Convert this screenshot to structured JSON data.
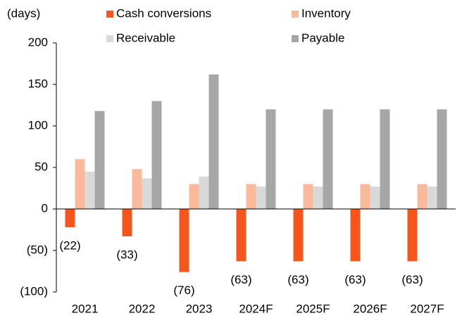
{
  "chart_data": {
    "type": "bar",
    "y_axis_label": "(days)",
    "categories": [
      "2021",
      "2022",
      "2023",
      "2024F",
      "2025F",
      "2026F",
      "2027F"
    ],
    "series": [
      {
        "name": "Cash conversions",
        "color": "#f4561d",
        "values": [
          -22,
          -33,
          -76,
          -63,
          -63,
          -63,
          -63
        ],
        "value_labels": [
          "(22)",
          "(33)",
          "(76)",
          "(63)",
          "(63)",
          "(63)",
          "(63)"
        ]
      },
      {
        "name": "Inventory",
        "color": "#f9b99a",
        "values": [
          60,
          48,
          30,
          30,
          30,
          30,
          30
        ]
      },
      {
        "name": "Receivable",
        "color": "#d9d9d9",
        "values": [
          45,
          37,
          39,
          27,
          27,
          27,
          27
        ]
      },
      {
        "name": "Payable",
        "color": "#a6a6a6",
        "values": [
          118,
          130,
          162,
          120,
          120,
          120,
          120
        ]
      }
    ],
    "ylim": [
      -100,
      200
    ],
    "yticks": [
      {
        "value": -100,
        "label": "(100)"
      },
      {
        "value": -50,
        "label": "(50)"
      },
      0,
      50,
      100,
      150,
      200
    ]
  }
}
